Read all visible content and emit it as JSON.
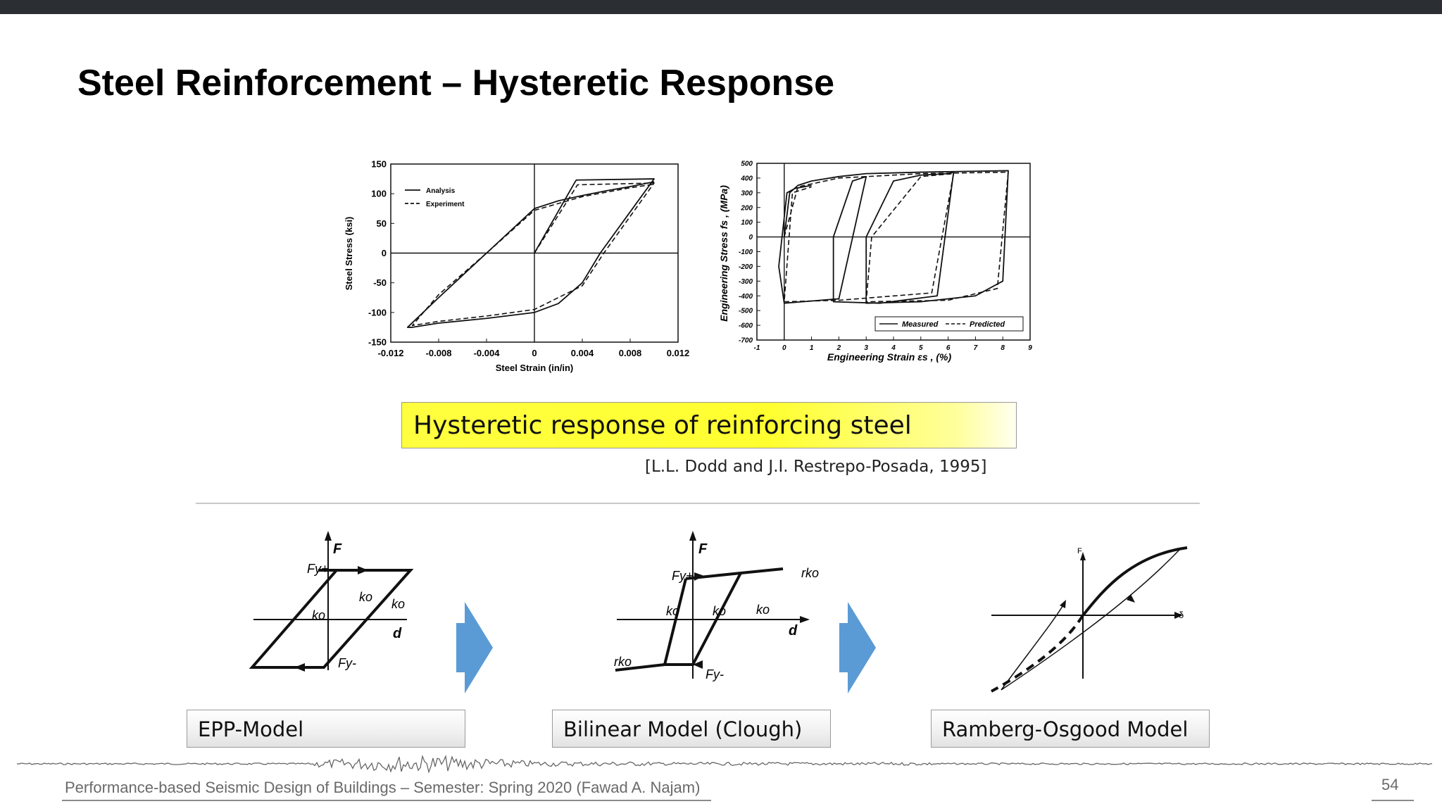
{
  "slide": {
    "title": "Steel Reinforcement – Hysteretic Response",
    "caption": "Hysteretic response of reinforcing steel",
    "reference": "[L.L. Dodd and J.I. Restrepo-Posada, 1995]",
    "footer": "Performance-based Seismic Design of Buildings – Semester: Spring 2020 (Fawad A. Najam)",
    "page_number": "54",
    "accent_colors": {
      "caption_fill": "#ffff33",
      "arrow_fill": "#5b9bd5"
    }
  },
  "chart_data": [
    {
      "type": "line",
      "xlabel": "Steel Strain (in/in)",
      "ylabel": "Steel Stress (ksi)",
      "xlim": [
        -0.012,
        0.012
      ],
      "ylim": [
        -150,
        150
      ],
      "x_ticks": [
        "-0.012",
        "-0.008",
        "-0.004",
        "0",
        "0.004",
        "0.008",
        "0.012"
      ],
      "y_ticks": [
        "150",
        "100",
        "50",
        "0",
        "-50",
        "-100",
        "-150"
      ],
      "legend": [
        "Analysis",
        "Experiment"
      ],
      "legend_position": "top-left",
      "series": [
        {
          "name": "Analysis",
          "x": [
            0,
            0.0034,
            0.0035,
            0.01,
            0.0055,
            0.004,
            0.002,
            0,
            -0.004,
            -0.008,
            -0.0102,
            -0.0106,
            -0.008,
            -0.004,
            0,
            0.002,
            0.004,
            0.006,
            0.008,
            0.01
          ],
          "y": [
            0,
            120,
            123,
            125,
            0,
            -50,
            -85,
            -100,
            -110,
            -118,
            -125,
            -125,
            -75,
            0,
            75,
            88,
            97,
            105,
            112,
            120
          ]
        },
        {
          "name": "Experiment",
          "x": [
            0,
            0.0036,
            0.01,
            0.0058,
            0.004,
            0,
            -0.004,
            -0.008,
            -0.0102,
            -0.008,
            -0.004,
            0,
            0.004,
            0.008,
            0.01
          ],
          "y": [
            0,
            115,
            118,
            0,
            -55,
            -95,
            -106,
            -115,
            -122,
            -70,
            0,
            72,
            95,
            110,
            116
          ]
        }
      ]
    },
    {
      "type": "line",
      "xlabel": "Engineering Strain εs , (%)",
      "ylabel": "Engineering Stress fs , (MPa)",
      "xlim": [
        -1,
        9
      ],
      "ylim": [
        -700,
        500
      ],
      "x_ticks": [
        "-1",
        "0",
        "1",
        "2",
        "3",
        "4",
        "5",
        "6",
        "7",
        "8",
        "9"
      ],
      "y_ticks": [
        "500",
        "400",
        "300",
        "200",
        "100",
        "0",
        "-100",
        "-200",
        "-300",
        "-400",
        "-500",
        "-600",
        "-700"
      ],
      "legend": [
        "Measured",
        "Predicted"
      ],
      "legend_position": "bottom-right",
      "series": [
        {
          "name": "Measured",
          "x": [
            0,
            0.2,
            0.5,
            1.0,
            2.0,
            3.0,
            5.0,
            8.2,
            8.0,
            7.0,
            5.0,
            3.0,
            3.0,
            4.0,
            5.0,
            6.0,
            6.2,
            5.6,
            3.5,
            1.8,
            1.8,
            2.5,
            3.0,
            2.0,
            0,
            -0.2,
            0.1,
            0.4,
            1.0
          ],
          "y": [
            0,
            300,
            350,
            380,
            410,
            430,
            440,
            450,
            -300,
            -400,
            -440,
            -450,
            0,
            380,
            420,
            430,
            440,
            -400,
            -450,
            -440,
            0,
            380,
            410,
            -420,
            -450,
            -200,
            300,
            330,
            350
          ]
        },
        {
          "name": "Predicted",
          "x": [
            0,
            0.5,
            2.0,
            5.0,
            8.2,
            7.8,
            6.0,
            3.0,
            3.2,
            5.0,
            6.2,
            5.4,
            2.0,
            0,
            0.3,
            1.0
          ],
          "y": [
            0,
            340,
            400,
            430,
            440,
            -350,
            -430,
            -440,
            0,
            410,
            430,
            -380,
            -430,
            -440,
            300,
            340
          ]
        }
      ]
    }
  ],
  "models": [
    {
      "label": "EPP-Model",
      "diagram": {
        "axis_force": "F",
        "axis_disp": "d",
        "fy_pos": "Fy+",
        "fy_neg": "Fy-",
        "stiffness": "ko"
      }
    },
    {
      "label": "Bilinear Model (Clough)",
      "diagram": {
        "axis_force": "F",
        "axis_disp": "d",
        "fy_pos": "Fy+",
        "fy_neg": "Fy-",
        "stiffness": "ko",
        "post_yield": "rko"
      }
    },
    {
      "label": "Ramberg-Osgood Model",
      "diagram": {
        "axis_force": "F",
        "axis_disp": "δ"
      }
    }
  ]
}
